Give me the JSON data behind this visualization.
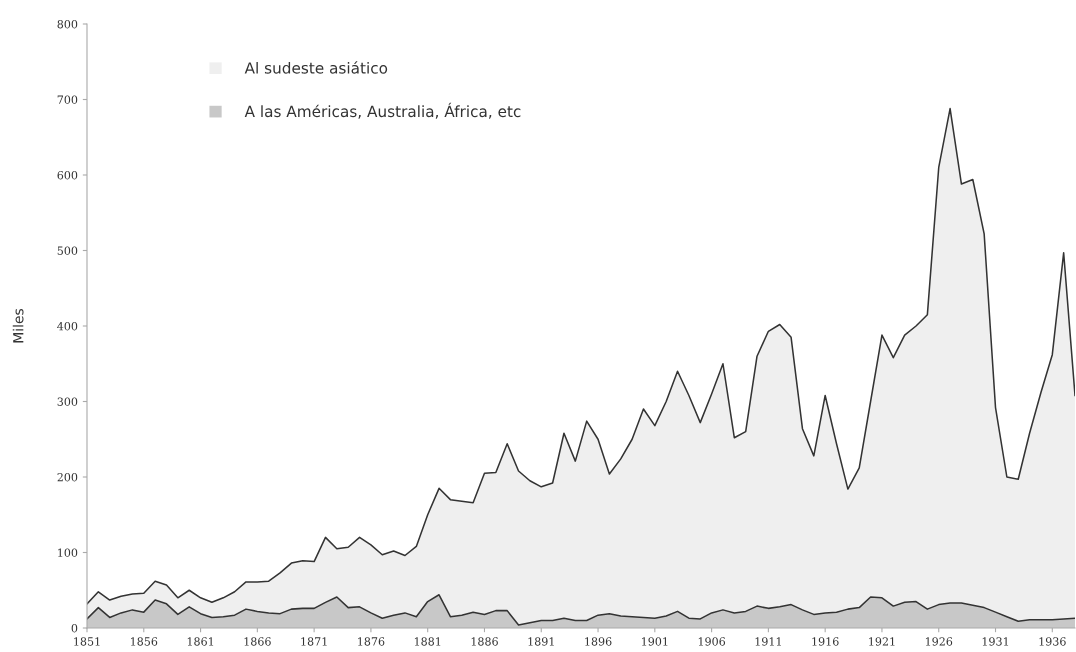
{
  "chart_data": {
    "type": "area",
    "ylabel": "Miles",
    "x": [
      1851,
      1852,
      1853,
      1854,
      1855,
      1856,
      1857,
      1858,
      1859,
      1860,
      1861,
      1862,
      1863,
      1864,
      1865,
      1866,
      1867,
      1868,
      1869,
      1870,
      1871,
      1872,
      1873,
      1874,
      1875,
      1876,
      1877,
      1878,
      1879,
      1880,
      1881,
      1882,
      1883,
      1884,
      1885,
      1886,
      1887,
      1888,
      1889,
      1890,
      1891,
      1892,
      1893,
      1894,
      1895,
      1896,
      1897,
      1898,
      1899,
      1900,
      1901,
      1902,
      1903,
      1904,
      1905,
      1906,
      1907,
      1908,
      1909,
      1910,
      1911,
      1912,
      1913,
      1914,
      1915,
      1916,
      1917,
      1918,
      1919,
      1920,
      1921,
      1922,
      1923,
      1924,
      1925,
      1926,
      1927,
      1928,
      1929,
      1930,
      1931,
      1932,
      1933,
      1934,
      1935,
      1936,
      1937,
      1938
    ],
    "series": [
      {
        "name": "Al sudeste asiático",
        "color": "#efefef",
        "values": [
          32,
          48,
          37,
          42,
          45,
          46,
          62,
          57,
          40,
          50,
          40,
          34,
          40,
          48,
          61,
          61,
          62,
          73,
          86,
          89,
          88,
          120,
          105,
          107,
          120,
          110,
          97,
          102,
          96,
          108,
          150,
          185,
          170,
          168,
          166,
          205,
          206,
          244,
          208,
          195,
          187,
          192,
          258,
          221,
          274,
          250,
          204,
          224,
          250,
          290,
          268,
          300,
          340,
          308,
          272,
          310,
          350,
          252,
          260,
          360,
          393,
          402,
          385,
          264,
          228,
          308,
          244,
          184,
          212,
          300,
          388,
          358,
          388,
          400,
          415,
          610,
          688,
          588,
          594,
          522,
          292,
          200,
          197,
          258,
          312,
          362,
          497,
          308
        ]
      },
      {
        "name": "A las Américas, Australia, África, etc",
        "color": "#c8c8c8",
        "values": [
          12,
          27,
          14,
          20,
          24,
          21,
          37,
          32,
          18,
          28,
          19,
          14,
          15,
          17,
          25,
          22,
          20,
          19,
          25,
          26,
          26,
          34,
          41,
          27,
          28,
          20,
          13,
          17,
          20,
          15,
          35,
          44,
          15,
          17,
          21,
          18,
          23,
          23,
          4,
          7,
          10,
          10,
          13,
          10,
          10,
          17,
          19,
          16,
          15,
          14,
          13,
          16,
          22,
          13,
          12,
          20,
          24,
          20,
          22,
          29,
          26,
          28,
          31,
          24,
          18,
          20,
          21,
          25,
          27,
          41,
          40,
          29,
          34,
          35,
          25,
          31,
          33,
          33,
          30,
          27,
          21,
          15,
          9,
          11,
          11,
          11,
          12,
          13
        ]
      }
    ],
    "xlim": [
      1851,
      1938
    ],
    "xticks": [
      1851,
      1856,
      1861,
      1866,
      1871,
      1876,
      1881,
      1886,
      1891,
      1896,
      1901,
      1906,
      1911,
      1916,
      1921,
      1926,
      1931,
      1936
    ],
    "ylim": [
      0,
      800
    ],
    "yticks": [
      0,
      100,
      200,
      300,
      400,
      500,
      600,
      700,
      800
    ],
    "grid": false,
    "legend": "top left"
  }
}
